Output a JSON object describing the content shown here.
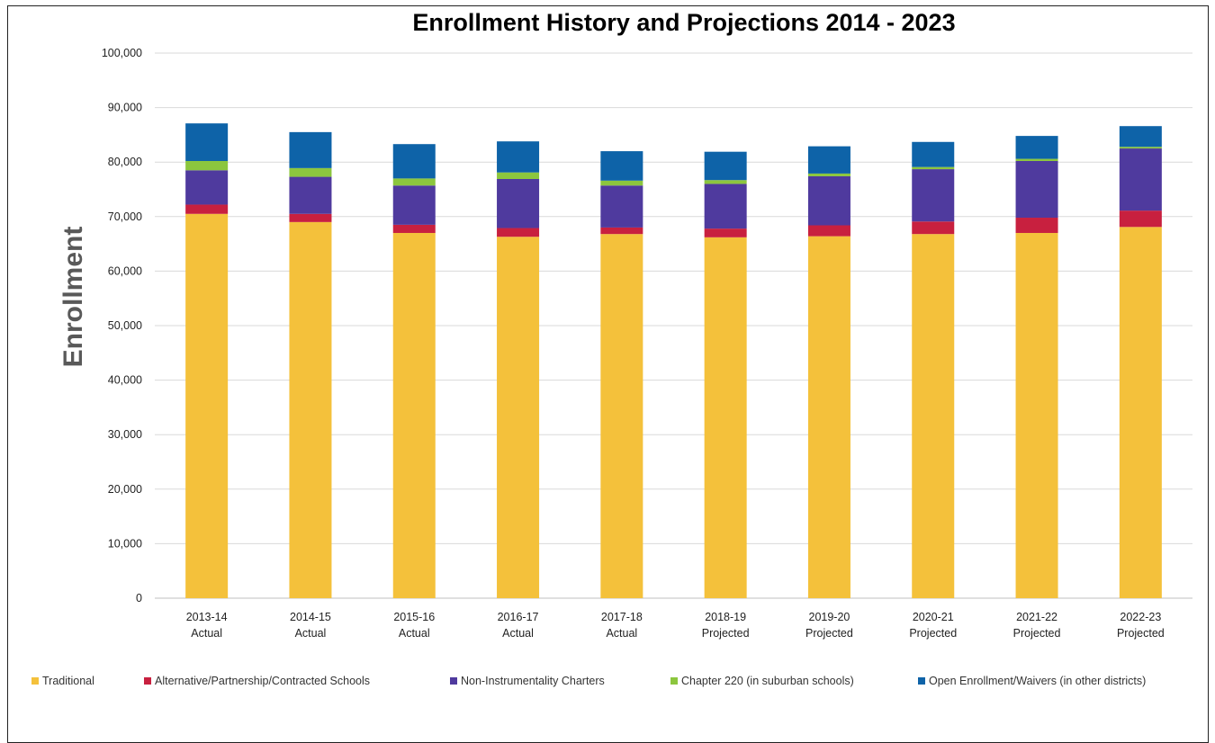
{
  "chart_data": {
    "type": "bar",
    "stacked": true,
    "title": "Enrollment History and Projections 2014 - 2023",
    "xlabel": "",
    "ylabel": "Enrollment",
    "ylim": [
      0,
      100000
    ],
    "yticks": [
      "0",
      "10,000",
      "20,000",
      "30,000",
      "40,000",
      "50,000",
      "60,000",
      "70,000",
      "80,000",
      "90,000",
      "100,000"
    ],
    "grid": true,
    "legend_position": "bottom",
    "categories": [
      [
        "2013-14",
        "Actual"
      ],
      [
        "2014-15",
        "Actual"
      ],
      [
        "2015-16",
        "Actual"
      ],
      [
        "2016-17",
        "Actual"
      ],
      [
        "2017-18",
        "Actual"
      ],
      [
        "2018-19",
        "Projected"
      ],
      [
        "2019-20",
        "Projected"
      ],
      [
        "2020-21",
        "Projected"
      ],
      [
        "2021-22",
        "Projected"
      ],
      [
        "2022-23",
        "Projected"
      ]
    ],
    "series": [
      {
        "name": "Traditional",
        "color": "#F4C13B",
        "values": [
          70500,
          69000,
          67000,
          66300,
          66800,
          66200,
          66400,
          66800,
          67000,
          68100
        ]
      },
      {
        "name": "Alternative/Partnership/Contracted Schools",
        "color": "#C8203F",
        "values": [
          1700,
          1500,
          1500,
          1600,
          1200,
          1600,
          2000,
          2300,
          2800,
          3000
        ]
      },
      {
        "name": "Non-Instrumentality Charters",
        "color": "#4F3A9E",
        "values": [
          6300,
          6800,
          7200,
          9000,
          7700,
          8200,
          9000,
          9600,
          10400,
          11400
        ]
      },
      {
        "name": "Chapter 220 (in suburban schools)",
        "color": "#8CC63E",
        "values": [
          1700,
          1600,
          1300,
          1200,
          900,
          700,
          500,
          400,
          400,
          300
        ]
      },
      {
        "name": "Open Enrollment/Waivers (in other districts)",
        "color": "#0E63A8",
        "values": [
          6900,
          6600,
          6300,
          5700,
          5400,
          5200,
          5000,
          4600,
          4200,
          3800
        ]
      }
    ]
  }
}
